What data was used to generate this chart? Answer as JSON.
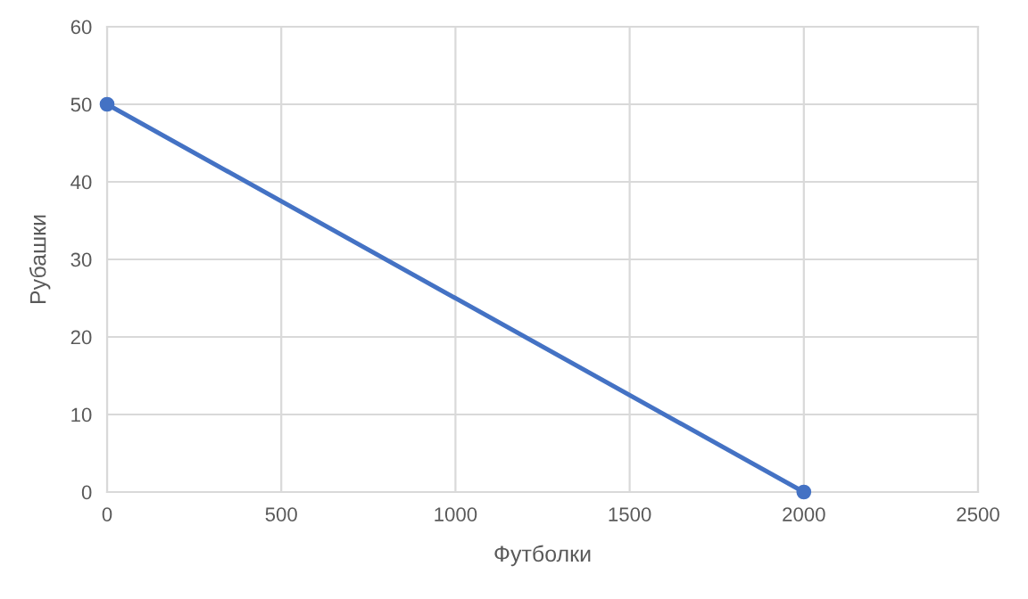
{
  "chart_data": {
    "type": "line",
    "xlabel": "Футболки",
    "ylabel": "Рубашки",
    "x": [
      0,
      2000
    ],
    "series": [
      {
        "color": "#4472c4",
        "values": [
          50,
          0
        ]
      }
    ],
    "xlim": [
      0,
      2500
    ],
    "xticks": [
      0,
      500,
      1000,
      1500,
      2000,
      2500
    ],
    "ylim": [
      0,
      60
    ],
    "yticks": [
      0,
      10,
      20,
      30,
      40,
      50,
      60
    ],
    "grid": true,
    "marker": "circle",
    "line_style": "solid"
  }
}
